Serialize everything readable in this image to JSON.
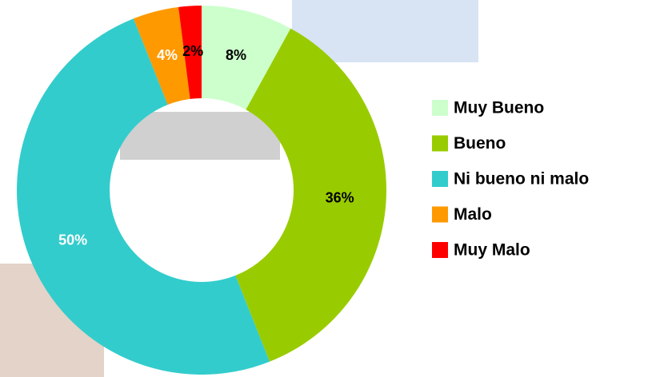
{
  "chart_data": {
    "type": "donut",
    "categories": [
      "Muy Bueno",
      "Bueno",
      "Ni bueno ni malo",
      "Malo",
      "Muy Malo"
    ],
    "values": [
      8,
      36,
      50,
      4,
      2
    ],
    "value_labels": [
      "8%",
      "36%",
      "50%",
      "4%",
      "2%"
    ],
    "colors": [
      "#ccffcc",
      "#99cc00",
      "#33cccc",
      "#ff9900",
      "#ff0000"
    ],
    "label_colors": [
      "#000000",
      "#000000",
      "#ffffff",
      "#ffffff",
      "#000000"
    ],
    "legend": "right"
  }
}
